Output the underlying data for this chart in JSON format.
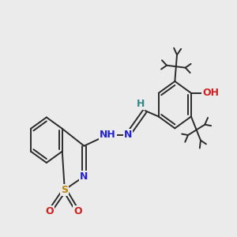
{
  "bg_color": "#ebebeb",
  "bond_color": "#2a2a2a",
  "bond_width": 1.4,
  "dbo": 0.055,
  "figsize": [
    3.0,
    3.0
  ],
  "dpi": 100,
  "xlim": [
    -0.5,
    7.0
  ],
  "ylim": [
    0.2,
    6.2
  ],
  "S_color": "#b8860b",
  "N_color": "#2222cc",
  "O_color": "#cc2222",
  "H_color": "#338888"
}
